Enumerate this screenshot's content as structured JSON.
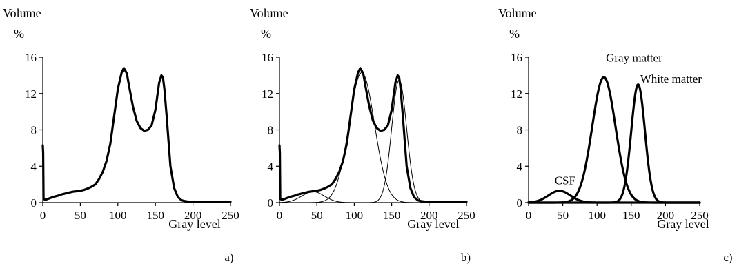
{
  "chart_data": [
    {
      "type": "line",
      "panel_label": "a)",
      "ylabel": [
        "Volume",
        "%"
      ],
      "xlabel": "Gray level",
      "xlim": [
        0,
        250
      ],
      "ylim": [
        0,
        16
      ],
      "xticks": [
        0,
        50,
        100,
        150,
        200,
        250
      ],
      "yticks": [
        0,
        4,
        8,
        12,
        16
      ],
      "grid": false,
      "series": [
        {
          "style": "thick",
          "x": [
            0,
            0.5,
            1,
            2,
            5,
            10,
            15,
            20,
            25,
            30,
            35,
            40,
            45,
            50,
            55,
            60,
            65,
            70,
            75,
            80,
            85,
            90,
            95,
            100,
            105,
            108,
            112,
            115,
            120,
            125,
            130,
            135,
            140,
            145,
            150,
            155,
            158,
            160,
            162,
            165,
            170,
            175,
            180,
            185,
            190,
            195,
            200,
            210,
            220,
            230,
            240,
            250
          ],
          "y": [
            6.3,
            5.5,
            0.5,
            0.35,
            0.35,
            0.5,
            0.65,
            0.75,
            0.9,
            1.0,
            1.1,
            1.2,
            1.25,
            1.3,
            1.4,
            1.55,
            1.75,
            2.0,
            2.6,
            3.4,
            4.6,
            6.5,
            9.5,
            12.5,
            14.3,
            14.8,
            14.2,
            12.8,
            10.6,
            9.0,
            8.2,
            7.9,
            8.0,
            8.5,
            10.2,
            13.2,
            14.0,
            13.8,
            12.5,
            9.5,
            4.0,
            1.6,
            0.6,
            0.25,
            0.15,
            0.1,
            0.1,
            0.1,
            0.1,
            0.1,
            0.1,
            0.1
          ]
        }
      ]
    },
    {
      "type": "line",
      "panel_label": "b)",
      "ylabel": [
        "Volume",
        "%"
      ],
      "xlabel": "Gray level",
      "xlim": [
        0,
        250
      ],
      "ylim": [
        0,
        16
      ],
      "xticks": [
        0,
        50,
        100,
        150,
        200,
        250
      ],
      "yticks": [
        0,
        4,
        8,
        12,
        16
      ],
      "grid": false,
      "series": [
        {
          "style": "thick",
          "x": [
            0,
            0.5,
            1,
            2,
            5,
            10,
            15,
            20,
            25,
            30,
            35,
            40,
            45,
            50,
            55,
            60,
            65,
            70,
            75,
            80,
            85,
            90,
            95,
            100,
            105,
            108,
            112,
            115,
            120,
            125,
            130,
            135,
            140,
            145,
            150,
            155,
            158,
            160,
            162,
            165,
            170,
            175,
            180,
            185,
            190,
            195,
            200,
            210,
            220,
            230,
            240,
            250
          ],
          "y": [
            6.3,
            5.5,
            0.5,
            0.35,
            0.35,
            0.5,
            0.65,
            0.75,
            0.9,
            1.0,
            1.1,
            1.2,
            1.25,
            1.3,
            1.4,
            1.55,
            1.75,
            2.0,
            2.6,
            3.4,
            4.6,
            6.5,
            9.5,
            12.5,
            14.3,
            14.8,
            14.2,
            12.8,
            10.6,
            9.0,
            8.2,
            7.9,
            8.0,
            8.5,
            10.2,
            13.2,
            14.0,
            13.8,
            12.5,
            9.5,
            4.0,
            1.6,
            0.6,
            0.25,
            0.15,
            0.1,
            0.1,
            0.1,
            0.1,
            0.1,
            0.1,
            0.1
          ]
        },
        {
          "style": "thin",
          "gaussian": {
            "mu": 45,
            "sigma": 15,
            "amp": 1.2
          }
        },
        {
          "style": "thin",
          "gaussian": {
            "mu": 110,
            "sigma": 17,
            "amp": 14.3
          }
        },
        {
          "style": "thin",
          "gaussian": {
            "mu": 160,
            "sigma": 10,
            "amp": 13.5
          }
        }
      ]
    },
    {
      "type": "line",
      "panel_label": "c)",
      "ylabel": [
        "Volume",
        "%"
      ],
      "xlabel": "Gray level",
      "xlim": [
        0,
        250
      ],
      "ylim": [
        0,
        16
      ],
      "xticks": [
        0,
        50,
        100,
        150,
        200,
        250
      ],
      "yticks": [
        0,
        4,
        8,
        12,
        16
      ],
      "grid": false,
      "annotations": [
        {
          "text": "CSF",
          "x": 38,
          "y": 2.0
        },
        {
          "text": "Gray matter",
          "x": 113,
          "y": 15.5
        },
        {
          "text": "White matter",
          "x": 163,
          "y": 13.2
        }
      ],
      "series": [
        {
          "name": "CSF",
          "style": "thick",
          "gaussian": {
            "mu": 45,
            "sigma": 16,
            "amp": 1.3
          }
        },
        {
          "name": "Gray matter",
          "style": "thick",
          "gaussian": {
            "mu": 110,
            "sigma": 17,
            "amp": 13.8
          }
        },
        {
          "name": "White matter",
          "style": "thick",
          "gaussian": {
            "mu": 160,
            "sigma": 10,
            "amp": 13.0
          }
        }
      ]
    }
  ]
}
